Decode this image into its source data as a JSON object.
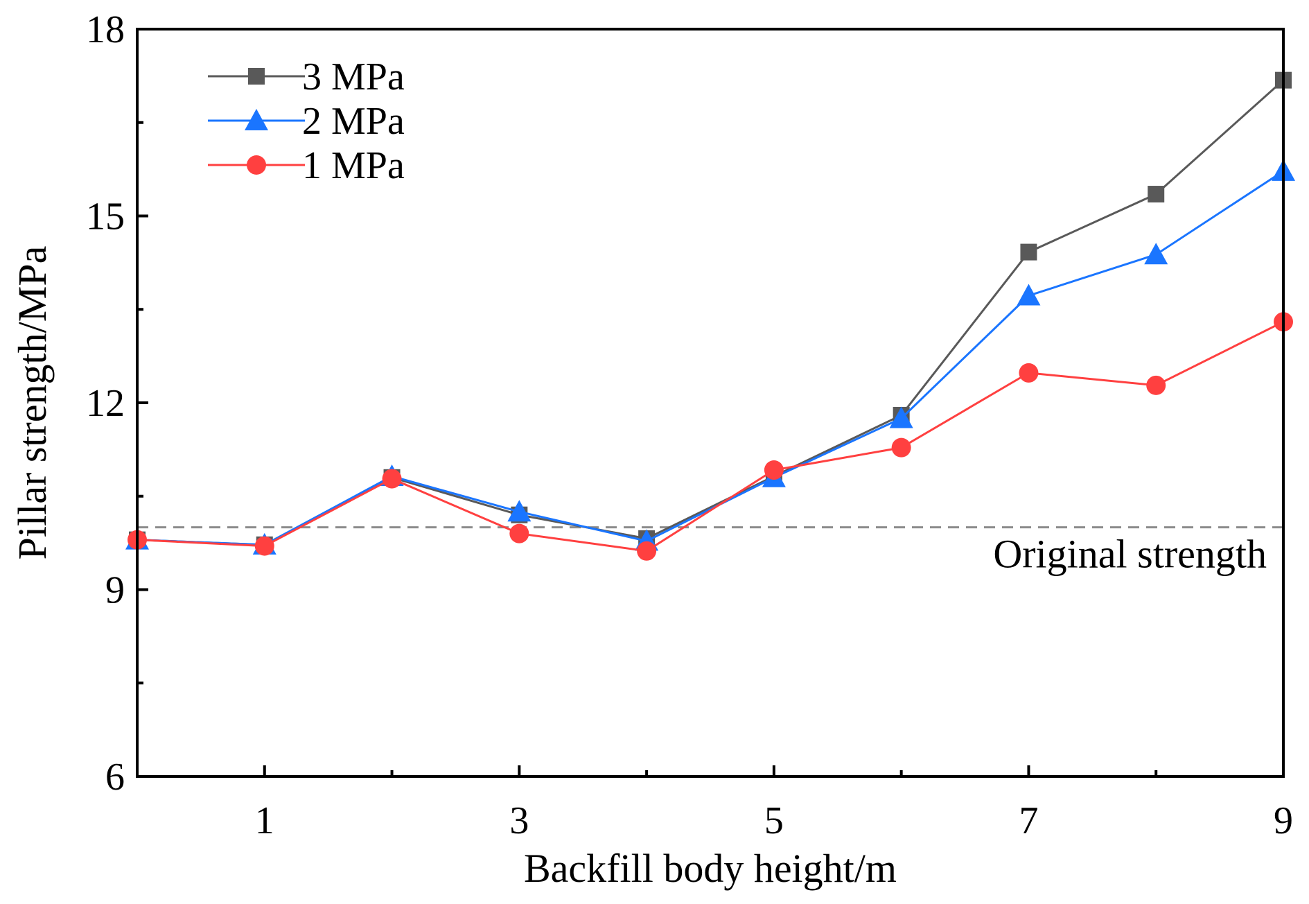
{
  "chart_data": {
    "type": "line",
    "title": "",
    "xlabel": "Backfill body height/m",
    "ylabel": "Pillar strength/MPa",
    "xlim": [
      0,
      9
    ],
    "ylim": [
      6,
      18
    ],
    "x_ticks": [
      1,
      3,
      5,
      7,
      9
    ],
    "x_minor_ticks": [
      2,
      4,
      6,
      8
    ],
    "y_ticks": [
      6,
      9,
      12,
      15,
      18
    ],
    "y_minor_ticks": [
      7.5,
      10.5,
      13.5,
      16.5
    ],
    "grid": false,
    "legend_position": "top-left",
    "x": [
      0,
      1,
      2,
      3,
      4,
      5,
      6,
      7,
      8,
      9
    ],
    "series": [
      {
        "name": "3  MPa",
        "marker": "square",
        "color": "#595959",
        "values": [
          9.8,
          9.72,
          10.8,
          10.2,
          9.82,
          10.82,
          11.8,
          14.42,
          15.35,
          17.18
        ]
      },
      {
        "name": "2  MPa",
        "marker": "triangle",
        "color": "#1a75ff",
        "values": [
          9.8,
          9.72,
          10.82,
          10.25,
          9.78,
          10.8,
          11.75,
          13.72,
          14.38,
          15.72
        ]
      },
      {
        "name": "1  MPa",
        "marker": "circle",
        "color": "#ff4040",
        "values": [
          9.8,
          9.7,
          10.78,
          9.9,
          9.62,
          10.92,
          11.28,
          12.48,
          12.28,
          13.3
        ]
      }
    ],
    "reference_line": {
      "label": "Original strength",
      "y": 10.0,
      "style": "dashed",
      "color": "#8c8c8c"
    }
  }
}
